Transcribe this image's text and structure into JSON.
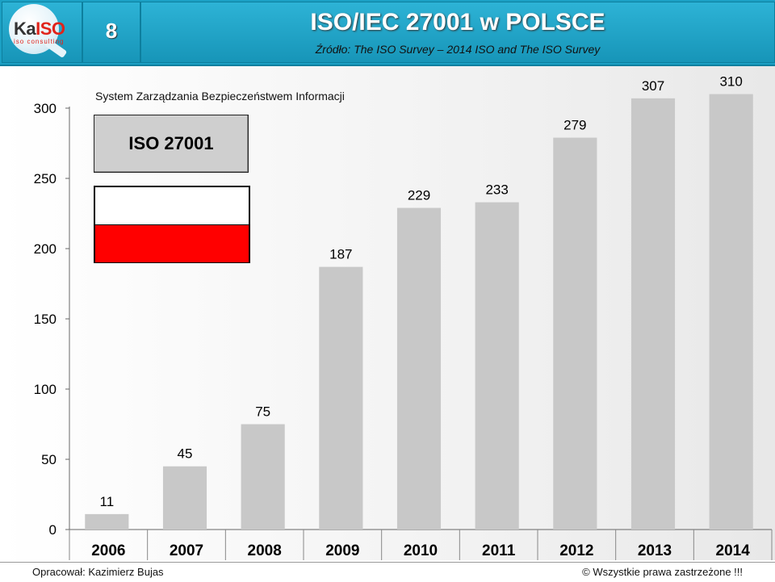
{
  "header": {
    "logo_text_a": "Ka",
    "logo_text_b": "ISO",
    "logo_sub": "iso consulting",
    "slide_number": "8",
    "title": "ISO/IEC 27001 w POLSCE",
    "subtitle": "Źródło: The ISO Survey – 2014   ISO and The ISO Survey"
  },
  "legend": {
    "title": "System Zarządzania Bezpieczeństwem Informacji",
    "label": "ISO 27001"
  },
  "colors": {
    "header": "#1ba0c4",
    "bar": "#c8c8c8",
    "flag_white": "#ffffff",
    "flag_red": "#ff0000"
  },
  "chart_data": {
    "type": "bar",
    "categories": [
      "2006",
      "2007",
      "2008",
      "2009",
      "2010",
      "2011",
      "2012",
      "2013",
      "2014"
    ],
    "values": [
      11,
      45,
      75,
      187,
      229,
      233,
      279,
      307,
      310
    ],
    "ylim": [
      0,
      300
    ],
    "yticks": [
      0,
      50,
      100,
      150,
      200,
      250,
      300
    ],
    "grid": false,
    "data_labels": true
  },
  "footer": {
    "left": "Opracował: Kazimierz Bujas",
    "right": "©  Wszystkie prawa zastrzeżone  !!!"
  }
}
